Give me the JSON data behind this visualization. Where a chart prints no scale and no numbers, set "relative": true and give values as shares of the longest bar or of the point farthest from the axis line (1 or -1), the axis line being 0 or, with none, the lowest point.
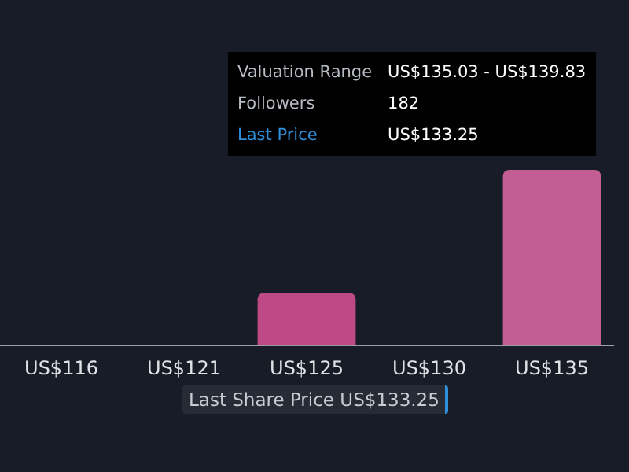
{
  "chart_data": {
    "type": "bar",
    "relative": true,
    "categories": [
      "US$116",
      "US$121",
      "US$125",
      "US$130",
      "US$135"
    ],
    "values": [
      0,
      0,
      0.3,
      0,
      1
    ],
    "colors": [
      "#bd4a87",
      "#bd4a87",
      "#bd4a87",
      "#bd4a87",
      "#c25e94"
    ],
    "legend": false,
    "annotations": [
      "Valuation Range",
      "US$135.03 - US$139.83",
      "Followers",
      "182",
      "Last Price",
      "US$133.25",
      "Last Share Price US$133.25"
    ]
  }
}
